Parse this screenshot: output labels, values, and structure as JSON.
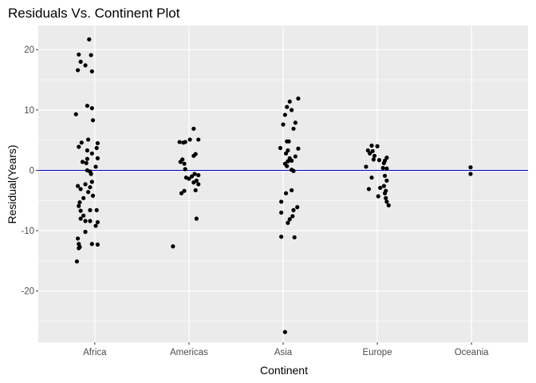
{
  "chart_data": {
    "type": "scatter",
    "title": "Residuals Vs. Continent Plot",
    "xlabel": "Continent",
    "ylabel": "Residual(Years)",
    "categories": [
      "Africa",
      "Americas",
      "Asia",
      "Europe",
      "Oceania"
    ],
    "y_ticks": [
      -20,
      -10,
      0,
      10,
      20
    ],
    "y_tick_labels": [
      "-20",
      "-10",
      "0",
      "10",
      "20"
    ],
    "ylim": [
      -28.5,
      24
    ],
    "grid": true,
    "reference_line": {
      "y": 0,
      "color": "#0000cc"
    },
    "panel_background": "#ebebeb",
    "point_color": "#000000",
    "points": [
      {
        "c": "Africa",
        "jitter": -0.06,
        "y": 21.7
      },
      {
        "c": "Africa",
        "jitter": -0.17,
        "y": 19.2
      },
      {
        "c": "Africa",
        "jitter": -0.04,
        "y": 19.1
      },
      {
        "c": "Africa",
        "jitter": -0.15,
        "y": 18.0
      },
      {
        "c": "Africa",
        "jitter": -0.1,
        "y": 17.4
      },
      {
        "c": "Africa",
        "jitter": -0.18,
        "y": 16.6
      },
      {
        "c": "Africa",
        "jitter": -0.03,
        "y": 16.4
      },
      {
        "c": "Africa",
        "jitter": -0.08,
        "y": 10.7
      },
      {
        "c": "Africa",
        "jitter": -0.03,
        "y": 10.3
      },
      {
        "c": "Africa",
        "jitter": -0.2,
        "y": 9.3
      },
      {
        "c": "Africa",
        "jitter": -0.02,
        "y": 8.3
      },
      {
        "c": "Africa",
        "jitter": -0.07,
        "y": 5.1
      },
      {
        "c": "Africa",
        "jitter": -0.14,
        "y": 4.6
      },
      {
        "c": "Africa",
        "jitter": 0.03,
        "y": 4.5
      },
      {
        "c": "Africa",
        "jitter": -0.17,
        "y": 3.9
      },
      {
        "c": "Africa",
        "jitter": -0.08,
        "y": 3.3
      },
      {
        "c": "Africa",
        "jitter": 0.02,
        "y": 3.7
      },
      {
        "c": "Africa",
        "jitter": -0.03,
        "y": 2.8
      },
      {
        "c": "Africa",
        "jitter": -0.08,
        "y": 1.9
      },
      {
        "c": "Africa",
        "jitter": -0.13,
        "y": 1.4
      },
      {
        "c": "Africa",
        "jitter": 0.03,
        "y": 2.0
      },
      {
        "c": "Africa",
        "jitter": -0.09,
        "y": 1.2
      },
      {
        "c": "Africa",
        "jitter": 0.01,
        "y": 0.6
      },
      {
        "c": "Africa",
        "jitter": -0.08,
        "y": 0.0
      },
      {
        "c": "Africa",
        "jitter": -0.05,
        "y": -0.2
      },
      {
        "c": "Africa",
        "jitter": -0.04,
        "y": -0.6
      },
      {
        "c": "Africa",
        "jitter": -0.03,
        "y": -1.9
      },
      {
        "c": "Africa",
        "jitter": -0.1,
        "y": -2.3
      },
      {
        "c": "Africa",
        "jitter": -0.18,
        "y": -2.6
      },
      {
        "c": "Africa",
        "jitter": -0.05,
        "y": -2.8
      },
      {
        "c": "Africa",
        "jitter": -0.15,
        "y": -3.1
      },
      {
        "c": "Africa",
        "jitter": -0.07,
        "y": -3.6
      },
      {
        "c": "Africa",
        "jitter": -0.02,
        "y": -4.2
      },
      {
        "c": "Africa",
        "jitter": -0.12,
        "y": -4.6
      },
      {
        "c": "Africa",
        "jitter": -0.16,
        "y": -5.3
      },
      {
        "c": "Africa",
        "jitter": -0.17,
        "y": -5.9
      },
      {
        "c": "Africa",
        "jitter": -0.05,
        "y": -6.6
      },
      {
        "c": "Africa",
        "jitter": -0.15,
        "y": -6.7
      },
      {
        "c": "Africa",
        "jitter": 0.02,
        "y": -6.6
      },
      {
        "c": "Africa",
        "jitter": -0.12,
        "y": -7.5
      },
      {
        "c": "Africa",
        "jitter": -0.15,
        "y": -8.0
      },
      {
        "c": "Africa",
        "jitter": -0.1,
        "y": -8.4
      },
      {
        "c": "Africa",
        "jitter": -0.05,
        "y": -8.4
      },
      {
        "c": "Africa",
        "jitter": 0.03,
        "y": -8.6
      },
      {
        "c": "Africa",
        "jitter": 0.01,
        "y": -9.2
      },
      {
        "c": "Africa",
        "jitter": -0.1,
        "y": -10.2
      },
      {
        "c": "Africa",
        "jitter": -0.18,
        "y": -11.3
      },
      {
        "c": "Africa",
        "jitter": -0.17,
        "y": -12.2
      },
      {
        "c": "Africa",
        "jitter": -0.03,
        "y": -12.2
      },
      {
        "c": "Africa",
        "jitter": 0.03,
        "y": -12.3
      },
      {
        "c": "Africa",
        "jitter": -0.16,
        "y": -12.7
      },
      {
        "c": "Africa",
        "jitter": -0.17,
        "y": -12.9
      },
      {
        "c": "Africa",
        "jitter": -0.19,
        "y": -15.1
      },
      {
        "c": "Americas",
        "jitter": 0.05,
        "y": 6.9
      },
      {
        "c": "Americas",
        "jitter": 0.01,
        "y": 5.1
      },
      {
        "c": "Americas",
        "jitter": 0.1,
        "y": 5.1
      },
      {
        "c": "Americas",
        "jitter": -0.1,
        "y": 4.7
      },
      {
        "c": "Americas",
        "jitter": -0.04,
        "y": 4.7
      },
      {
        "c": "Americas",
        "jitter": -0.06,
        "y": 4.6
      },
      {
        "c": "Americas",
        "jitter": 0.07,
        "y": 2.7
      },
      {
        "c": "Americas",
        "jitter": 0.05,
        "y": 2.4
      },
      {
        "c": "Americas",
        "jitter": -0.07,
        "y": 1.8
      },
      {
        "c": "Americas",
        "jitter": -0.09,
        "y": 1.4
      },
      {
        "c": "Americas",
        "jitter": -0.05,
        "y": 1.1
      },
      {
        "c": "Americas",
        "jitter": -0.04,
        "y": 0.2
      },
      {
        "c": "Americas",
        "jitter": 0.06,
        "y": -0.6
      },
      {
        "c": "Americas",
        "jitter": 0.1,
        "y": -0.8
      },
      {
        "c": "Americas",
        "jitter": 0.03,
        "y": -1.0
      },
      {
        "c": "Americas",
        "jitter": -0.03,
        "y": -1.2
      },
      {
        "c": "Americas",
        "jitter": 0.0,
        "y": -1.4
      },
      {
        "c": "Americas",
        "jitter": 0.08,
        "y": -1.7
      },
      {
        "c": "Americas",
        "jitter": 0.05,
        "y": -2.0
      },
      {
        "c": "Americas",
        "jitter": 0.1,
        "y": -2.3
      },
      {
        "c": "Americas",
        "jitter": 0.07,
        "y": -3.3
      },
      {
        "c": "Americas",
        "jitter": -0.05,
        "y": -3.4
      },
      {
        "c": "Americas",
        "jitter": -0.08,
        "y": -3.8
      },
      {
        "c": "Americas",
        "jitter": 0.08,
        "y": -8.0
      },
      {
        "c": "Americas",
        "jitter": -0.17,
        "y": -12.6
      },
      {
        "c": "Asia",
        "jitter": 0.16,
        "y": 11.9
      },
      {
        "c": "Asia",
        "jitter": 0.07,
        "y": 11.4
      },
      {
        "c": "Asia",
        "jitter": 0.04,
        "y": 10.5
      },
      {
        "c": "Asia",
        "jitter": 0.09,
        "y": 10.0
      },
      {
        "c": "Asia",
        "jitter": 0.02,
        "y": 9.2
      },
      {
        "c": "Asia",
        "jitter": 0.13,
        "y": 7.9
      },
      {
        "c": "Asia",
        "jitter": 0.0,
        "y": 7.6
      },
      {
        "c": "Asia",
        "jitter": 0.11,
        "y": 6.9
      },
      {
        "c": "Asia",
        "jitter": 0.04,
        "y": 4.8
      },
      {
        "c": "Asia",
        "jitter": 0.06,
        "y": 4.8
      },
      {
        "c": "Asia",
        "jitter": -0.03,
        "y": 3.7
      },
      {
        "c": "Asia",
        "jitter": 0.16,
        "y": 3.6
      },
      {
        "c": "Asia",
        "jitter": 0.05,
        "y": 3.3
      },
      {
        "c": "Asia",
        "jitter": 0.03,
        "y": 2.8
      },
      {
        "c": "Asia",
        "jitter": 0.13,
        "y": 2.3
      },
      {
        "c": "Asia",
        "jitter": 0.07,
        "y": 2.0
      },
      {
        "c": "Asia",
        "jitter": 0.09,
        "y": 1.6
      },
      {
        "c": "Asia",
        "jitter": 0.05,
        "y": 1.5
      },
      {
        "c": "Asia",
        "jitter": 0.02,
        "y": 1.1
      },
      {
        "c": "Asia",
        "jitter": 0.04,
        "y": 0.7
      },
      {
        "c": "Asia",
        "jitter": 0.09,
        "y": 0.1
      },
      {
        "c": "Asia",
        "jitter": 0.11,
        "y": -0.1
      },
      {
        "c": "Asia",
        "jitter": 0.09,
        "y": -3.3
      },
      {
        "c": "Asia",
        "jitter": 0.03,
        "y": -3.8
      },
      {
        "c": "Asia",
        "jitter": -0.02,
        "y": -5.2
      },
      {
        "c": "Asia",
        "jitter": 0.15,
        "y": -6.1
      },
      {
        "c": "Asia",
        "jitter": 0.11,
        "y": -6.6
      },
      {
        "c": "Asia",
        "jitter": -0.02,
        "y": -7.0
      },
      {
        "c": "Asia",
        "jitter": 0.1,
        "y": -7.6
      },
      {
        "c": "Asia",
        "jitter": 0.07,
        "y": -8.1
      },
      {
        "c": "Asia",
        "jitter": 0.05,
        "y": -8.7
      },
      {
        "c": "Asia",
        "jitter": -0.02,
        "y": -11.0
      },
      {
        "c": "Asia",
        "jitter": 0.12,
        "y": -11.1
      },
      {
        "c": "Asia",
        "jitter": 0.02,
        "y": -26.8
      },
      {
        "c": "Europe",
        "jitter": -0.06,
        "y": 4.1
      },
      {
        "c": "Europe",
        "jitter": 0.0,
        "y": 4.0
      },
      {
        "c": "Europe",
        "jitter": -0.1,
        "y": 3.3
      },
      {
        "c": "Europe",
        "jitter": -0.05,
        "y": 3.2
      },
      {
        "c": "Europe",
        "jitter": -0.08,
        "y": 2.8
      },
      {
        "c": "Europe",
        "jitter": -0.03,
        "y": 2.4
      },
      {
        "c": "Europe",
        "jitter": 0.1,
        "y": 2.1
      },
      {
        "c": "Europe",
        "jitter": -0.04,
        "y": 1.8
      },
      {
        "c": "Europe",
        "jitter": 0.02,
        "y": 1.7
      },
      {
        "c": "Europe",
        "jitter": 0.08,
        "y": 1.6
      },
      {
        "c": "Europe",
        "jitter": 0.07,
        "y": 1.2
      },
      {
        "c": "Europe",
        "jitter": -0.12,
        "y": 0.6
      },
      {
        "c": "Europe",
        "jitter": 0.06,
        "y": 0.4
      },
      {
        "c": "Europe",
        "jitter": 0.1,
        "y": 0.3
      },
      {
        "c": "Europe",
        "jitter": 0.08,
        "y": -0.9
      },
      {
        "c": "Europe",
        "jitter": -0.06,
        "y": -1.2
      },
      {
        "c": "Europe",
        "jitter": 0.1,
        "y": -1.7
      },
      {
        "c": "Europe",
        "jitter": 0.07,
        "y": -2.6
      },
      {
        "c": "Europe",
        "jitter": 0.03,
        "y": -2.9
      },
      {
        "c": "Europe",
        "jitter": -0.09,
        "y": -3.1
      },
      {
        "c": "Europe",
        "jitter": 0.09,
        "y": -3.4
      },
      {
        "c": "Europe",
        "jitter": 0.08,
        "y": -3.8
      },
      {
        "c": "Europe",
        "jitter": 0.01,
        "y": -4.3
      },
      {
        "c": "Europe",
        "jitter": 0.09,
        "y": -4.6
      },
      {
        "c": "Europe",
        "jitter": 0.1,
        "y": -5.2
      },
      {
        "c": "Europe",
        "jitter": 0.12,
        "y": -5.8
      },
      {
        "c": "Oceania",
        "jitter": -0.01,
        "y": 0.5
      },
      {
        "c": "Oceania",
        "jitter": -0.01,
        "y": -0.6
      }
    ]
  }
}
